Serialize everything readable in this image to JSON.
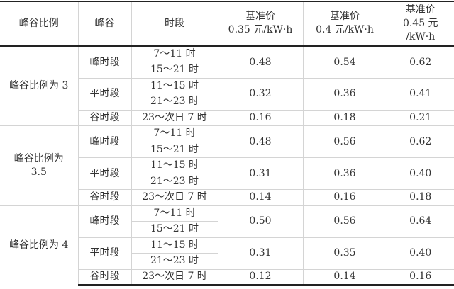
{
  "header": {
    "ratio": "峰谷比例",
    "type": "峰谷",
    "period": "时段",
    "price1": [
      "基准价",
      "0.35 元/kW·h"
    ],
    "price2": [
      "基准价",
      "0.4 元/kW·h"
    ],
    "price3": [
      "基准价",
      "0.45 元",
      "/kW·h"
    ]
  },
  "groups": [
    {
      "label": [
        "峰谷比例为 3"
      ],
      "peak": {
        "name": "峰时段",
        "times": [
          "7～11 时",
          "15～21 时"
        ],
        "prices": [
          "0.48",
          "0.54",
          "0.62"
        ]
      },
      "flat": {
        "name": "平时段",
        "times": [
          "11～15 时",
          "21～23 时"
        ],
        "prices": [
          "0.32",
          "0.36",
          "0.41"
        ]
      },
      "valley": {
        "name": "谷时段",
        "times": [
          "23～次日 7 时"
        ],
        "prices": [
          "0.16",
          "0.18",
          "0.21"
        ]
      }
    },
    {
      "label": [
        "峰谷比例为",
        "3.5"
      ],
      "peak": {
        "name": "峰时段",
        "times": [
          "7～11 时",
          "15～21 时"
        ],
        "prices": [
          "0.48",
          "0.56",
          "0.62"
        ]
      },
      "flat": {
        "name": "平时段",
        "times": [
          "11～15 时",
          "21～23 时"
        ],
        "prices": [
          "0.31",
          "0.36",
          "0.40"
        ]
      },
      "valley": {
        "name": "谷时段",
        "times": [
          "23～次日 7 时"
        ],
        "prices": [
          "0.14",
          "0.16",
          "0.18"
        ]
      }
    },
    {
      "label": [
        "峰谷比例为 4"
      ],
      "peak": {
        "name": "峰时段",
        "times": [
          "7～11 时",
          "15～21 时"
        ],
        "prices": [
          "0.50",
          "0.56",
          "0.64"
        ]
      },
      "flat": {
        "name": "平时段",
        "times": [
          "11～15 时",
          "21～23 时"
        ],
        "prices": [
          "0.31",
          "0.35",
          "0.40"
        ]
      },
      "valley": {
        "name": "谷时段",
        "times": [
          "23～次日 7 时"
        ],
        "prices": [
          "0.12",
          "0.14",
          "0.16"
        ]
      }
    }
  ]
}
